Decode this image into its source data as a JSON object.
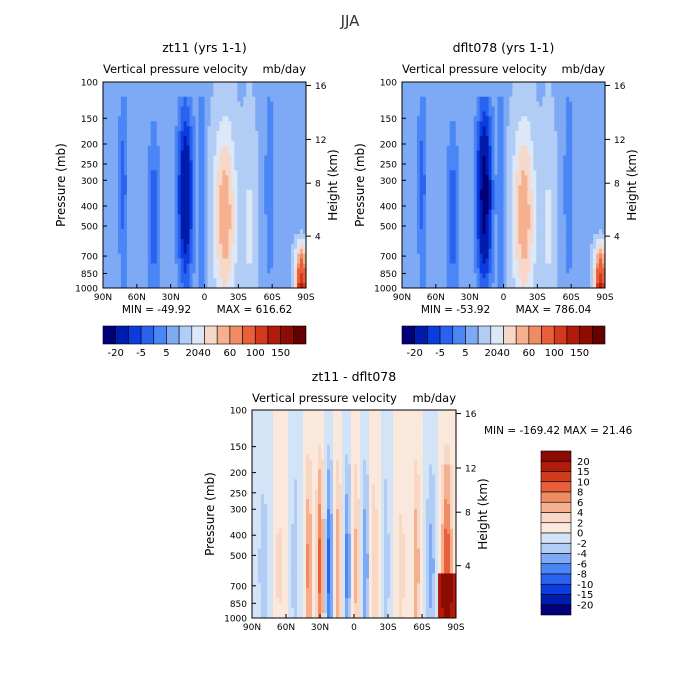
{
  "title": "JJA",
  "chart_data": [
    {
      "type": "heatmap",
      "title": "zt11 (yrs 1-1)",
      "subtitle_left": "Vertical pressure velocity",
      "subtitle_right": "mb/day",
      "xlabel": "",
      "ylabel": "Pressure (mb)",
      "ylabel_right": "Height (km)",
      "x_ticks": [
        "90N",
        "60N",
        "30N",
        "0",
        "30S",
        "60S",
        "90S"
      ],
      "y_ticks": [
        "100",
        "150",
        "200",
        "250",
        "300",
        "400",
        "500",
        "700",
        "850",
        "1000"
      ],
      "y_ticks_right": [
        "16",
        "12",
        "8",
        "4"
      ],
      "min_label": "MIN = -49.92",
      "max_label": "MAX = 616.62",
      "colorbar": [
        "-20",
        "-5",
        "5",
        "20",
        "40",
        "60",
        "100",
        "150"
      ],
      "colorbar_orientation": "horizontal"
    },
    {
      "type": "heatmap",
      "title": "dflt078 (yrs 1-1)",
      "subtitle_left": "Vertical pressure velocity",
      "subtitle_right": "mb/day",
      "xlabel": "",
      "ylabel": "Pressure (mb)",
      "ylabel_right": "Height (km)",
      "x_ticks": [
        "90N",
        "60N",
        "30N",
        "0",
        "30S",
        "60S",
        "90S"
      ],
      "y_ticks": [
        "100",
        "150",
        "200",
        "250",
        "300",
        "400",
        "500",
        "700",
        "850",
        "1000"
      ],
      "y_ticks_right": [
        "16",
        "12",
        "8",
        "4"
      ],
      "min_label": "MIN = -53.92",
      "max_label": "MAX = 786.04",
      "colorbar": [
        "-20",
        "-5",
        "5",
        "20",
        "40",
        "60",
        "100",
        "150"
      ],
      "colorbar_orientation": "horizontal"
    },
    {
      "type": "heatmap",
      "title": "zt11 - dflt078",
      "subtitle_left": "Vertical pressure velocity",
      "subtitle_right": "mb/day",
      "xlabel": "",
      "ylabel": "Pressure (mb)",
      "ylabel_right": "Height (km)",
      "x_ticks": [
        "90N",
        "60N",
        "30N",
        "0",
        "30S",
        "60S",
        "90S"
      ],
      "y_ticks": [
        "100",
        "150",
        "200",
        "250",
        "300",
        "400",
        "500",
        "700",
        "850",
        "1000"
      ],
      "y_ticks_right": [
        "16",
        "12",
        "8",
        "4"
      ],
      "minmax_label": "MIN = -169.42   MAX =  21.46",
      "colorbar": [
        "20",
        "15",
        "10",
        "8",
        "6",
        "4",
        "2",
        "0",
        "-2",
        "-4",
        "-6",
        "-8",
        "-10",
        "-15",
        "-20"
      ],
      "colorbar_orientation": "vertical"
    }
  ],
  "colors": {
    "seq_colorbar": [
      "#00007a",
      "#001cad",
      "#0a3ce0",
      "#2a62f0",
      "#4a86f5",
      "#7eaaf5",
      "#b2cdf5",
      "#dce8f7",
      "#f7d8c8",
      "#f5b090",
      "#f18b62",
      "#e85f3a",
      "#d23a1e",
      "#b21a0a",
      "#8c0c03",
      "#660000"
    ],
    "diff_colorbar": [
      "#8c0c03",
      "#b21a0a",
      "#d23a1e",
      "#e85f3a",
      "#f18b62",
      "#f5b090",
      "#f8d8c4",
      "#fbe8dc",
      "#d4e4f7",
      "#b2cdf5",
      "#7eaaf5",
      "#4a86f5",
      "#2a62f0",
      "#0a3ce0",
      "#001cad",
      "#00007a"
    ]
  }
}
